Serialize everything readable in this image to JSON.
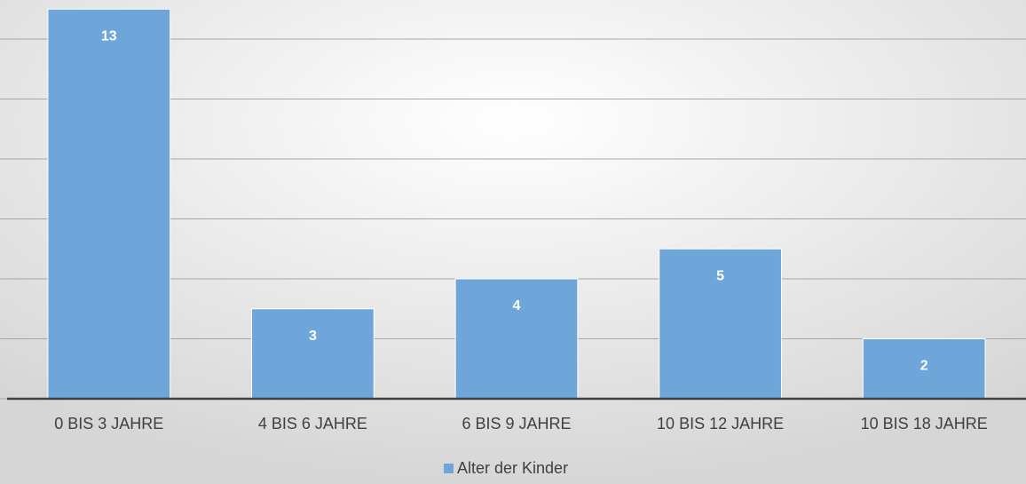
{
  "chart_data": {
    "type": "bar",
    "categories": [
      "0 BIS 3 JAHRE",
      "4 BIS 6 JAHRE",
      "6 BIS 9 JAHRE",
      "10 BIS 12 JAHRE",
      "10 BIS 18 JAHRE"
    ],
    "series": [
      {
        "name": "Alter der Kinder",
        "color": "#6fa6da",
        "values": [
          13,
          3,
          4,
          5,
          2
        ]
      }
    ],
    "ylim": [
      0,
      14
    ],
    "yticks": [
      0,
      2,
      4,
      6,
      8,
      10,
      12
    ],
    "grid": true,
    "legend": "bottom"
  }
}
